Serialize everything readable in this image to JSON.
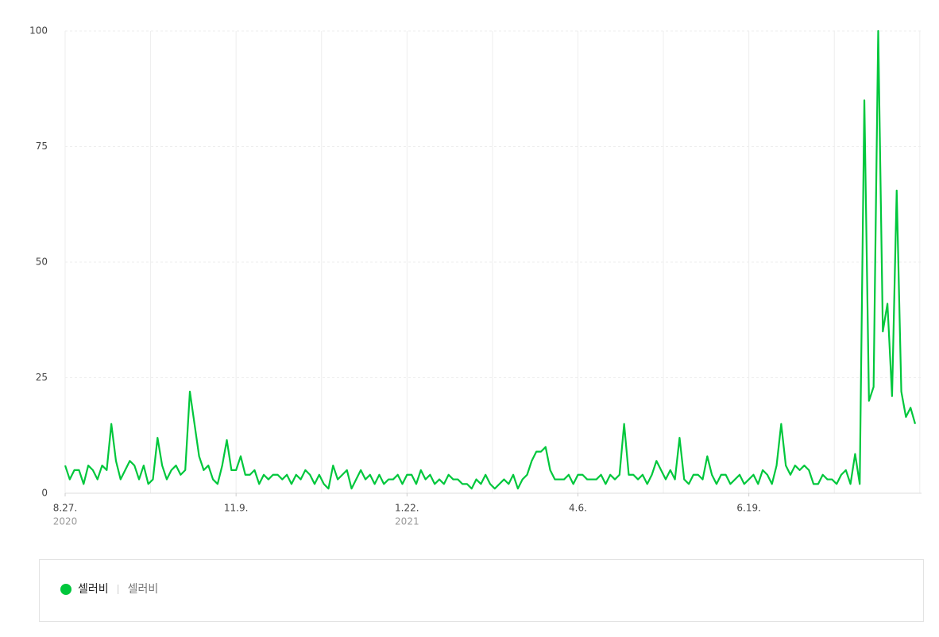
{
  "chart_data": {
    "type": "line",
    "series": [
      {
        "name": "셀러비",
        "keywords": "셀러비",
        "color": "#00c73c",
        "values": [
          6,
          3,
          5,
          5,
          2,
          6,
          5,
          3,
          6,
          5,
          15,
          7,
          3,
          5,
          7,
          6,
          3,
          6,
          2,
          3,
          12,
          6,
          3,
          5,
          6,
          4,
          5,
          22,
          15,
          8,
          5,
          6,
          3,
          2,
          6,
          11.5,
          5,
          5,
          8,
          4,
          4,
          5,
          2,
          4,
          3,
          4,
          4,
          3,
          4,
          2,
          4,
          3,
          5,
          4,
          2,
          4,
          2,
          1,
          6,
          3,
          4,
          5,
          1,
          3,
          5,
          3,
          4,
          2,
          4,
          2,
          3,
          3,
          4,
          2,
          4,
          4,
          2,
          5,
          3,
          4,
          2,
          3,
          2,
          4,
          3,
          3,
          2,
          2,
          1,
          3,
          2,
          4,
          2,
          1,
          2,
          3,
          2,
          4,
          1,
          3,
          4,
          7,
          9,
          9,
          10,
          5,
          3,
          3,
          3,
          4,
          2,
          4,
          4,
          3,
          3,
          3,
          4,
          2,
          4,
          3,
          4,
          15,
          4,
          4,
          3,
          4,
          2,
          4,
          7,
          5,
          3,
          5,
          3,
          12,
          3,
          2,
          4,
          4,
          3,
          8,
          4,
          2,
          4,
          4,
          2,
          3,
          4,
          2,
          3,
          4,
          2,
          5,
          4,
          2,
          6,
          15,
          6,
          4,
          6,
          5,
          6,
          5,
          2,
          2,
          4,
          3,
          3,
          2,
          4,
          5,
          2,
          8.5,
          2,
          85,
          20,
          23,
          100,
          35,
          41,
          21,
          65.5,
          22,
          16.5,
          18.5,
          15
        ]
      }
    ],
    "xlim": [
      0,
      184
    ],
    "xticks": [
      {
        "value": 0,
        "label": "8.27."
      },
      {
        "value": 37,
        "label": "11.9."
      },
      {
        "value": 74,
        "label": "1.22."
      },
      {
        "value": 111,
        "label": "4.6."
      },
      {
        "value": 148,
        "label": "6.19."
      }
    ],
    "xtick_years": [
      {
        "value": 0,
        "label": "2020"
      },
      {
        "value": 74,
        "label": "2021"
      }
    ],
    "ylim": [
      0,
      100
    ],
    "yticks": [
      0,
      25,
      50,
      75,
      100
    ],
    "grid": true
  }
}
